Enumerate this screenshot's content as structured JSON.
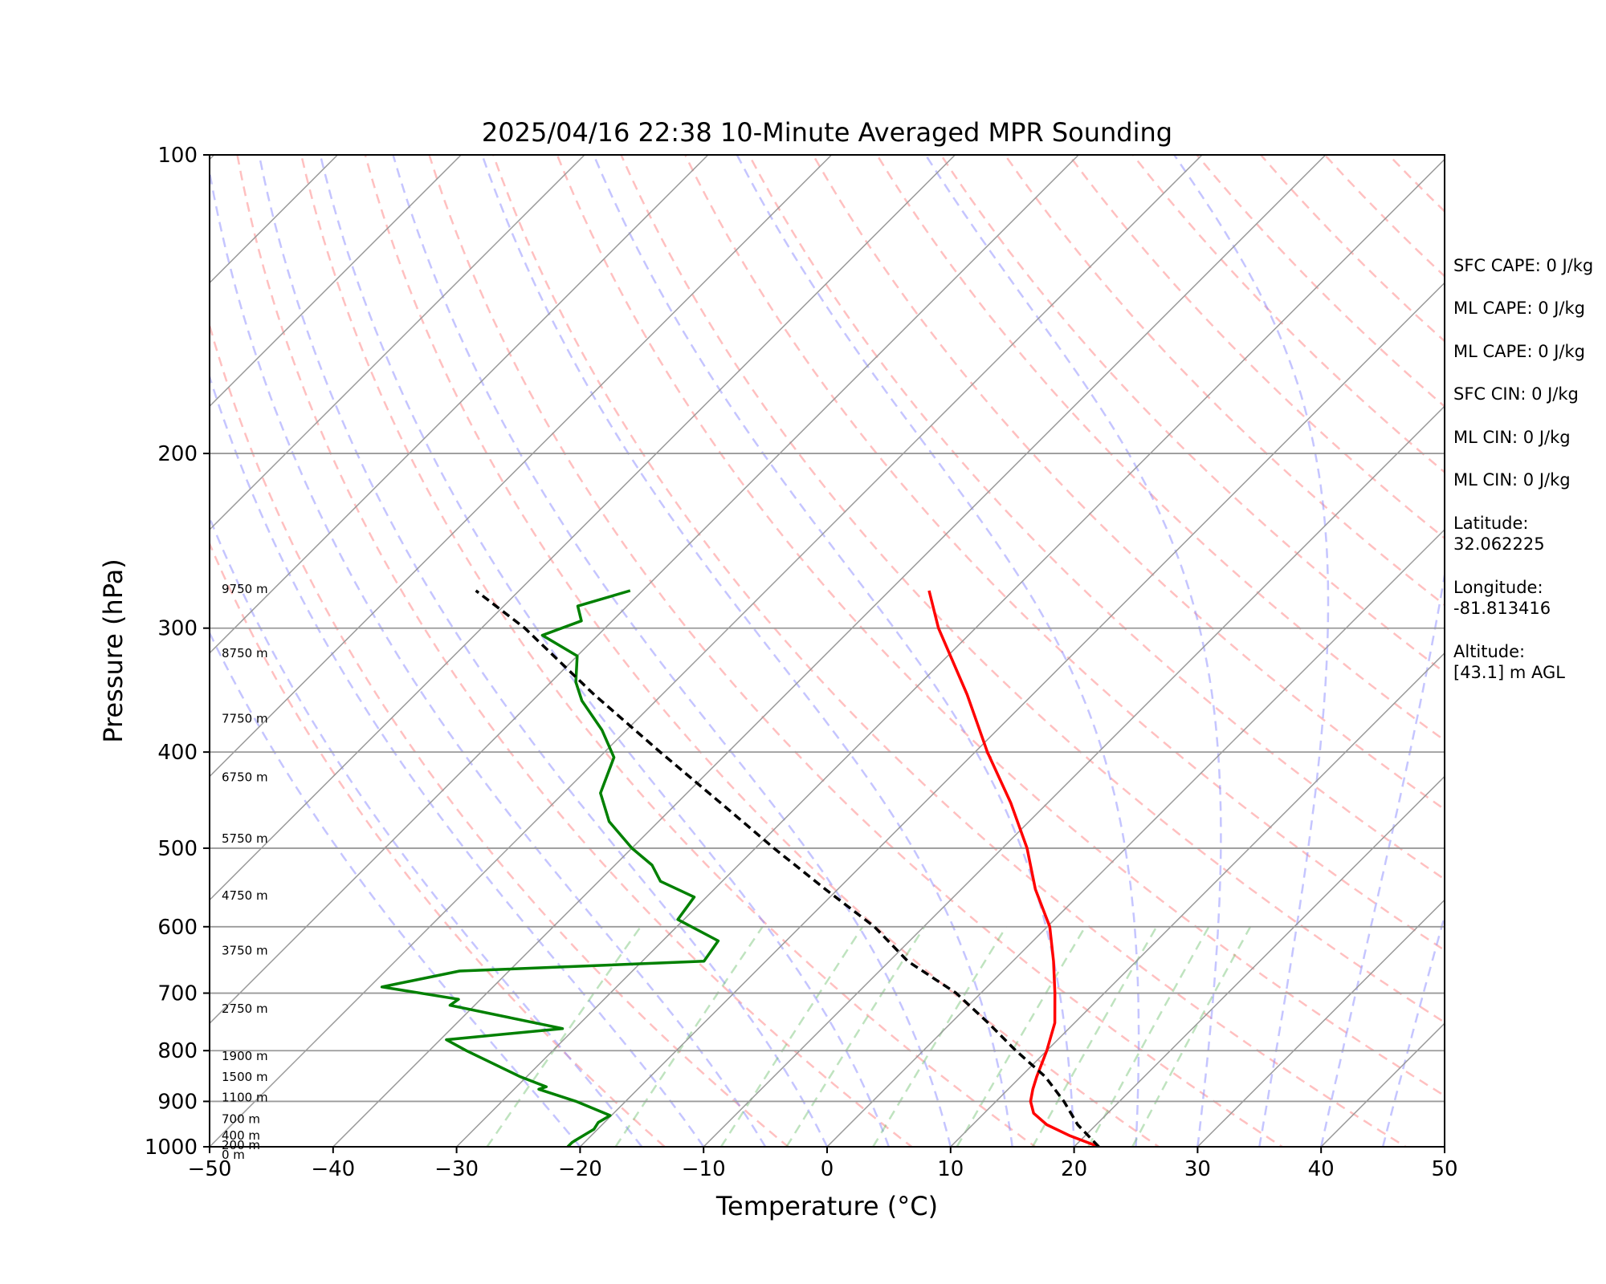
{
  "chart_data": {
    "type": "line",
    "title": "2025/04/16 22:38 10-Minute Averaged MPR Sounding",
    "xlabel": "Temperature (°C)",
    "ylabel": "Pressure (hPa)",
    "xlim": [
      -50,
      50
    ],
    "ylim": [
      1000,
      100
    ],
    "y_scale": "log",
    "skew": "skew-T log-P diagram, isotherms slanted 45°",
    "grid": true,
    "x_ticks": [
      "−50",
      "−40",
      "−30",
      "−20",
      "−10",
      "0",
      "10",
      "20",
      "30",
      "40",
      "50"
    ],
    "y_ticks": [
      "100",
      "200",
      "300",
      "400",
      "500",
      "600",
      "700",
      "800",
      "900",
      "1000"
    ],
    "series": [
      {
        "color": "#ff0000",
        "role": "temperature",
        "points": [
          [
            1000,
            22.0
          ],
          [
            975,
            18.8
          ],
          [
            950,
            16.0
          ],
          [
            925,
            14.0
          ],
          [
            900,
            12.8
          ],
          [
            875,
            12.0
          ],
          [
            850,
            11.3
          ],
          [
            800,
            10.0
          ],
          [
            750,
            8.4
          ],
          [
            700,
            6.0
          ],
          [
            650,
            3.3
          ],
          [
            600,
            0.2
          ],
          [
            550,
            -4.0
          ],
          [
            500,
            -8.0
          ],
          [
            450,
            -13.0
          ],
          [
            400,
            -19.0
          ],
          [
            350,
            -25.3
          ],
          [
            300,
            -33.0
          ],
          [
            275,
            -36.8
          ]
        ]
      },
      {
        "color": "#008000",
        "role": "dewpoint",
        "points": [
          [
            1000,
            -21.0
          ],
          [
            990,
            -21.0
          ],
          [
            985,
            -20.9
          ],
          [
            960,
            -20.3
          ],
          [
            945,
            -20.5
          ],
          [
            930,
            -20.1
          ],
          [
            900,
            -24.0
          ],
          [
            875,
            -28.0
          ],
          [
            870,
            -27.6
          ],
          [
            850,
            -30.5
          ],
          [
            800,
            -37.0
          ],
          [
            780,
            -39.5
          ],
          [
            760,
            -31.0
          ],
          [
            720,
            -42.0
          ],
          [
            710,
            -41.8
          ],
          [
            690,
            -49.0
          ],
          [
            665,
            -44.0
          ],
          [
            650,
            -25.0
          ],
          [
            620,
            -25.5
          ],
          [
            590,
            -30.5
          ],
          [
            560,
            -31.0
          ],
          [
            540,
            -35.0
          ],
          [
            520,
            -37.0
          ],
          [
            500,
            -40.0
          ],
          [
            470,
            -44.0
          ],
          [
            440,
            -47.0
          ],
          [
            405,
            -48.8
          ],
          [
            380,
            -52.0
          ],
          [
            355,
            -56.0
          ],
          [
            340,
            -58.0
          ],
          [
            320,
            -60.0
          ],
          [
            305,
            -64.5
          ],
          [
            295,
            -62.5
          ],
          [
            285,
            -64.0
          ],
          [
            275,
            -61.0
          ]
        ]
      },
      {
        "color": "#000000",
        "role": "parcel",
        "dashed": true,
        "points": [
          [
            1000,
            22.0
          ],
          [
            950,
            18.5
          ],
          [
            900,
            15.5
          ],
          [
            850,
            12.0
          ],
          [
            800,
            7.5
          ],
          [
            750,
            3.0
          ],
          [
            700,
            -2.0
          ],
          [
            650,
            -8.5
          ],
          [
            600,
            -14.0
          ],
          [
            550,
            -21.0
          ],
          [
            500,
            -28.5
          ],
          [
            450,
            -36.5
          ],
          [
            400,
            -45.5
          ],
          [
            350,
            -55.5
          ],
          [
            300,
            -66.5
          ],
          [
            275,
            -73.5
          ]
        ]
      }
    ],
    "reference_lines": {
      "dry_adiabats": "red dashed",
      "moist_adiabats": "blue dashed",
      "mixing_ratio": "green dashed",
      "isotherms": "gray"
    },
    "height_labels": [
      {
        "text": "9750 m",
        "p": 274
      },
      {
        "text": "8750 m",
        "p": 318
      },
      {
        "text": "7750 m",
        "p": 370
      },
      {
        "text": "6750 m",
        "p": 424
      },
      {
        "text": "5750 m",
        "p": 489
      },
      {
        "text": "4750 m",
        "p": 558
      },
      {
        "text": "3750 m",
        "p": 634
      },
      {
        "text": "2750 m",
        "p": 726
      },
      {
        "text": "1900 m",
        "p": 810
      },
      {
        "text": "1500 m",
        "p": 850
      },
      {
        "text": "1100 m",
        "p": 892
      },
      {
        "text": "700 m",
        "p": 938
      },
      {
        "text": "400 m",
        "p": 974
      },
      {
        "text": "200 m",
        "p": 996
      },
      {
        "text": "0 m",
        "p": 1019
      }
    ],
    "annotations": [
      "SFC CAPE: 0 J/kg",
      "ML CAPE: 0 J/kg",
      "ML CAPE: 0 J/kg",
      "SFC CIN: 0 J/kg",
      "ML CIN: 0 J/kg",
      "ML CIN: 0 J/kg",
      "Latitude:\n32.062225",
      "Longitude:\n-81.813416",
      "Altitude:\n[43.1] m AGL"
    ]
  }
}
